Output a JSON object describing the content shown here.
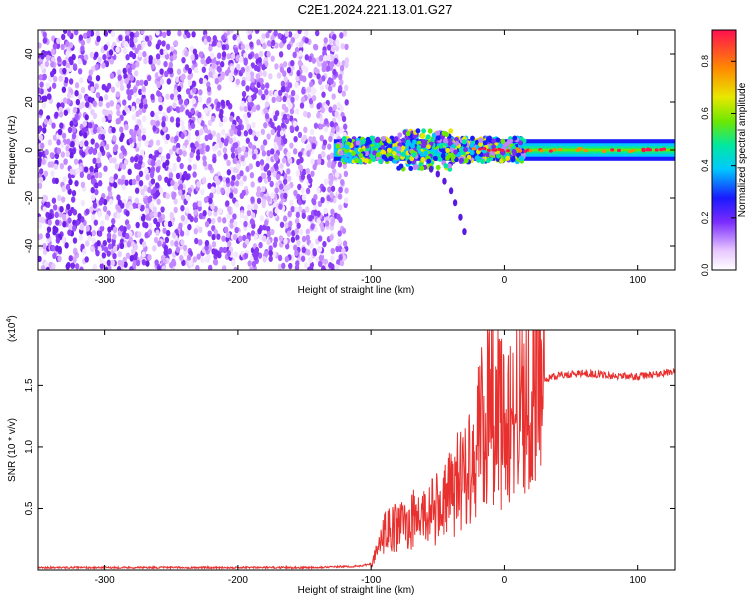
{
  "title": "C2E1.2024.221.13.01.G27",
  "chart_data": [
    {
      "type": "heatmap",
      "xlabel": "Height of straight line (km)",
      "ylabel": "Frequency (Hz)",
      "xlim": [
        -350,
        128
      ],
      "ylim": [
        -50,
        50
      ],
      "x_ticks": [
        -300,
        -200,
        -100,
        0,
        100
      ],
      "y_ticks": [
        -40,
        -20,
        0,
        20,
        40
      ],
      "colorbar": {
        "label": "Normalized spectral amplitude",
        "range": [
          0,
          0.92
        ],
        "ticks": [
          0.0,
          0.2,
          0.4,
          0.6,
          0.8
        ]
      },
      "regions": [
        {
          "x": [
            -350,
            -118
          ],
          "freq": [
            -50,
            50
          ],
          "amplitude": "low, noise-like"
        },
        {
          "x": [
            -128,
            128
          ],
          "freq": [
            -5,
            5
          ],
          "amplitude": "0.3-0.9, narrow band near 0 Hz"
        }
      ]
    },
    {
      "type": "line",
      "xlabel": "Height of straight line (km)",
      "ylabel": "SNR (10 * v/v)",
      "y_multiplier": "(x10",
      "y_multiplier_exp": "4",
      "xlim": [
        -350,
        128
      ],
      "ylim": [
        0,
        1.95
      ],
      "x_ticks": [
        -300,
        -200,
        -100,
        0,
        100
      ],
      "y_ticks": [
        0.5,
        1.0,
        1.5
      ],
      "color": "#e8312f",
      "series": [
        {
          "x": [
            -350,
            -300,
            -250,
            -200,
            -150,
            -110,
            -100,
            -95,
            -90,
            -80,
            -70,
            -60,
            -50,
            -40,
            -30,
            -20,
            -15,
            -10,
            -5,
            0,
            10,
            20,
            30,
            40,
            60,
            80,
            100,
            120,
            128
          ],
          "y": [
            0.02,
            0.02,
            0.02,
            0.02,
            0.02,
            0.03,
            0.05,
            0.15,
            0.3,
            0.35,
            0.4,
            0.45,
            0.5,
            0.62,
            0.8,
            1.05,
            1.2,
            1.35,
            1.25,
            1.15,
            1.3,
            1.45,
            1.55,
            1.58,
            1.6,
            1.58,
            1.57,
            1.6,
            1.62
          ]
        }
      ]
    }
  ]
}
